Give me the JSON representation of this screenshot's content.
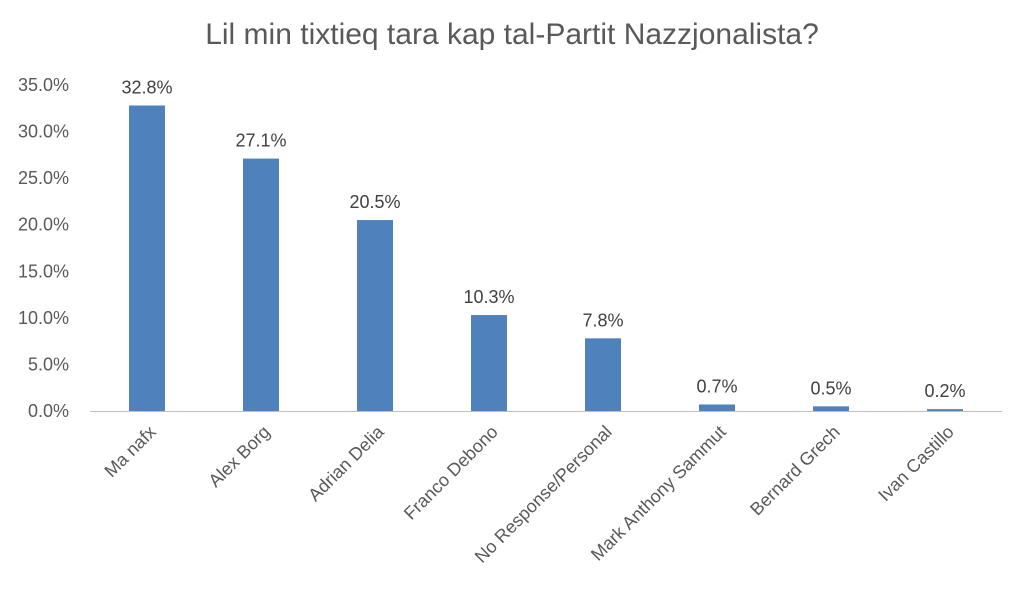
{
  "chart_data": {
    "type": "bar",
    "title": "Lil min tixtieq tara kap tal-Partit Nazzjonalista?",
    "xlabel": "",
    "ylabel": "",
    "categories": [
      "Ma nafx",
      "Alex Borg",
      "Adrian Delia",
      "Franco Debono",
      "No Response/Personal",
      "Mark Anthony Sammut",
      "Bernard Grech",
      "Ivan Castillo"
    ],
    "values": [
      32.8,
      27.1,
      20.5,
      10.3,
      7.8,
      0.7,
      0.5,
      0.2
    ],
    "data_labels": [
      "32.8%",
      "27.1%",
      "20.5%",
      "10.3%",
      "7.8%",
      "0.7%",
      "0.5%",
      "0.2%"
    ],
    "ylim": [
      0,
      35
    ],
    "yticks": [
      0,
      5,
      10,
      15,
      20,
      25,
      30,
      35
    ],
    "ytick_labels": [
      "0.0%",
      "5.0%",
      "10.0%",
      "15.0%",
      "20.0%",
      "25.0%",
      "30.0%",
      "35.0%"
    ],
    "grid": false,
    "legend": "none",
    "bar_color": "#4f81bd",
    "axis_color": "#bfbfbf"
  }
}
